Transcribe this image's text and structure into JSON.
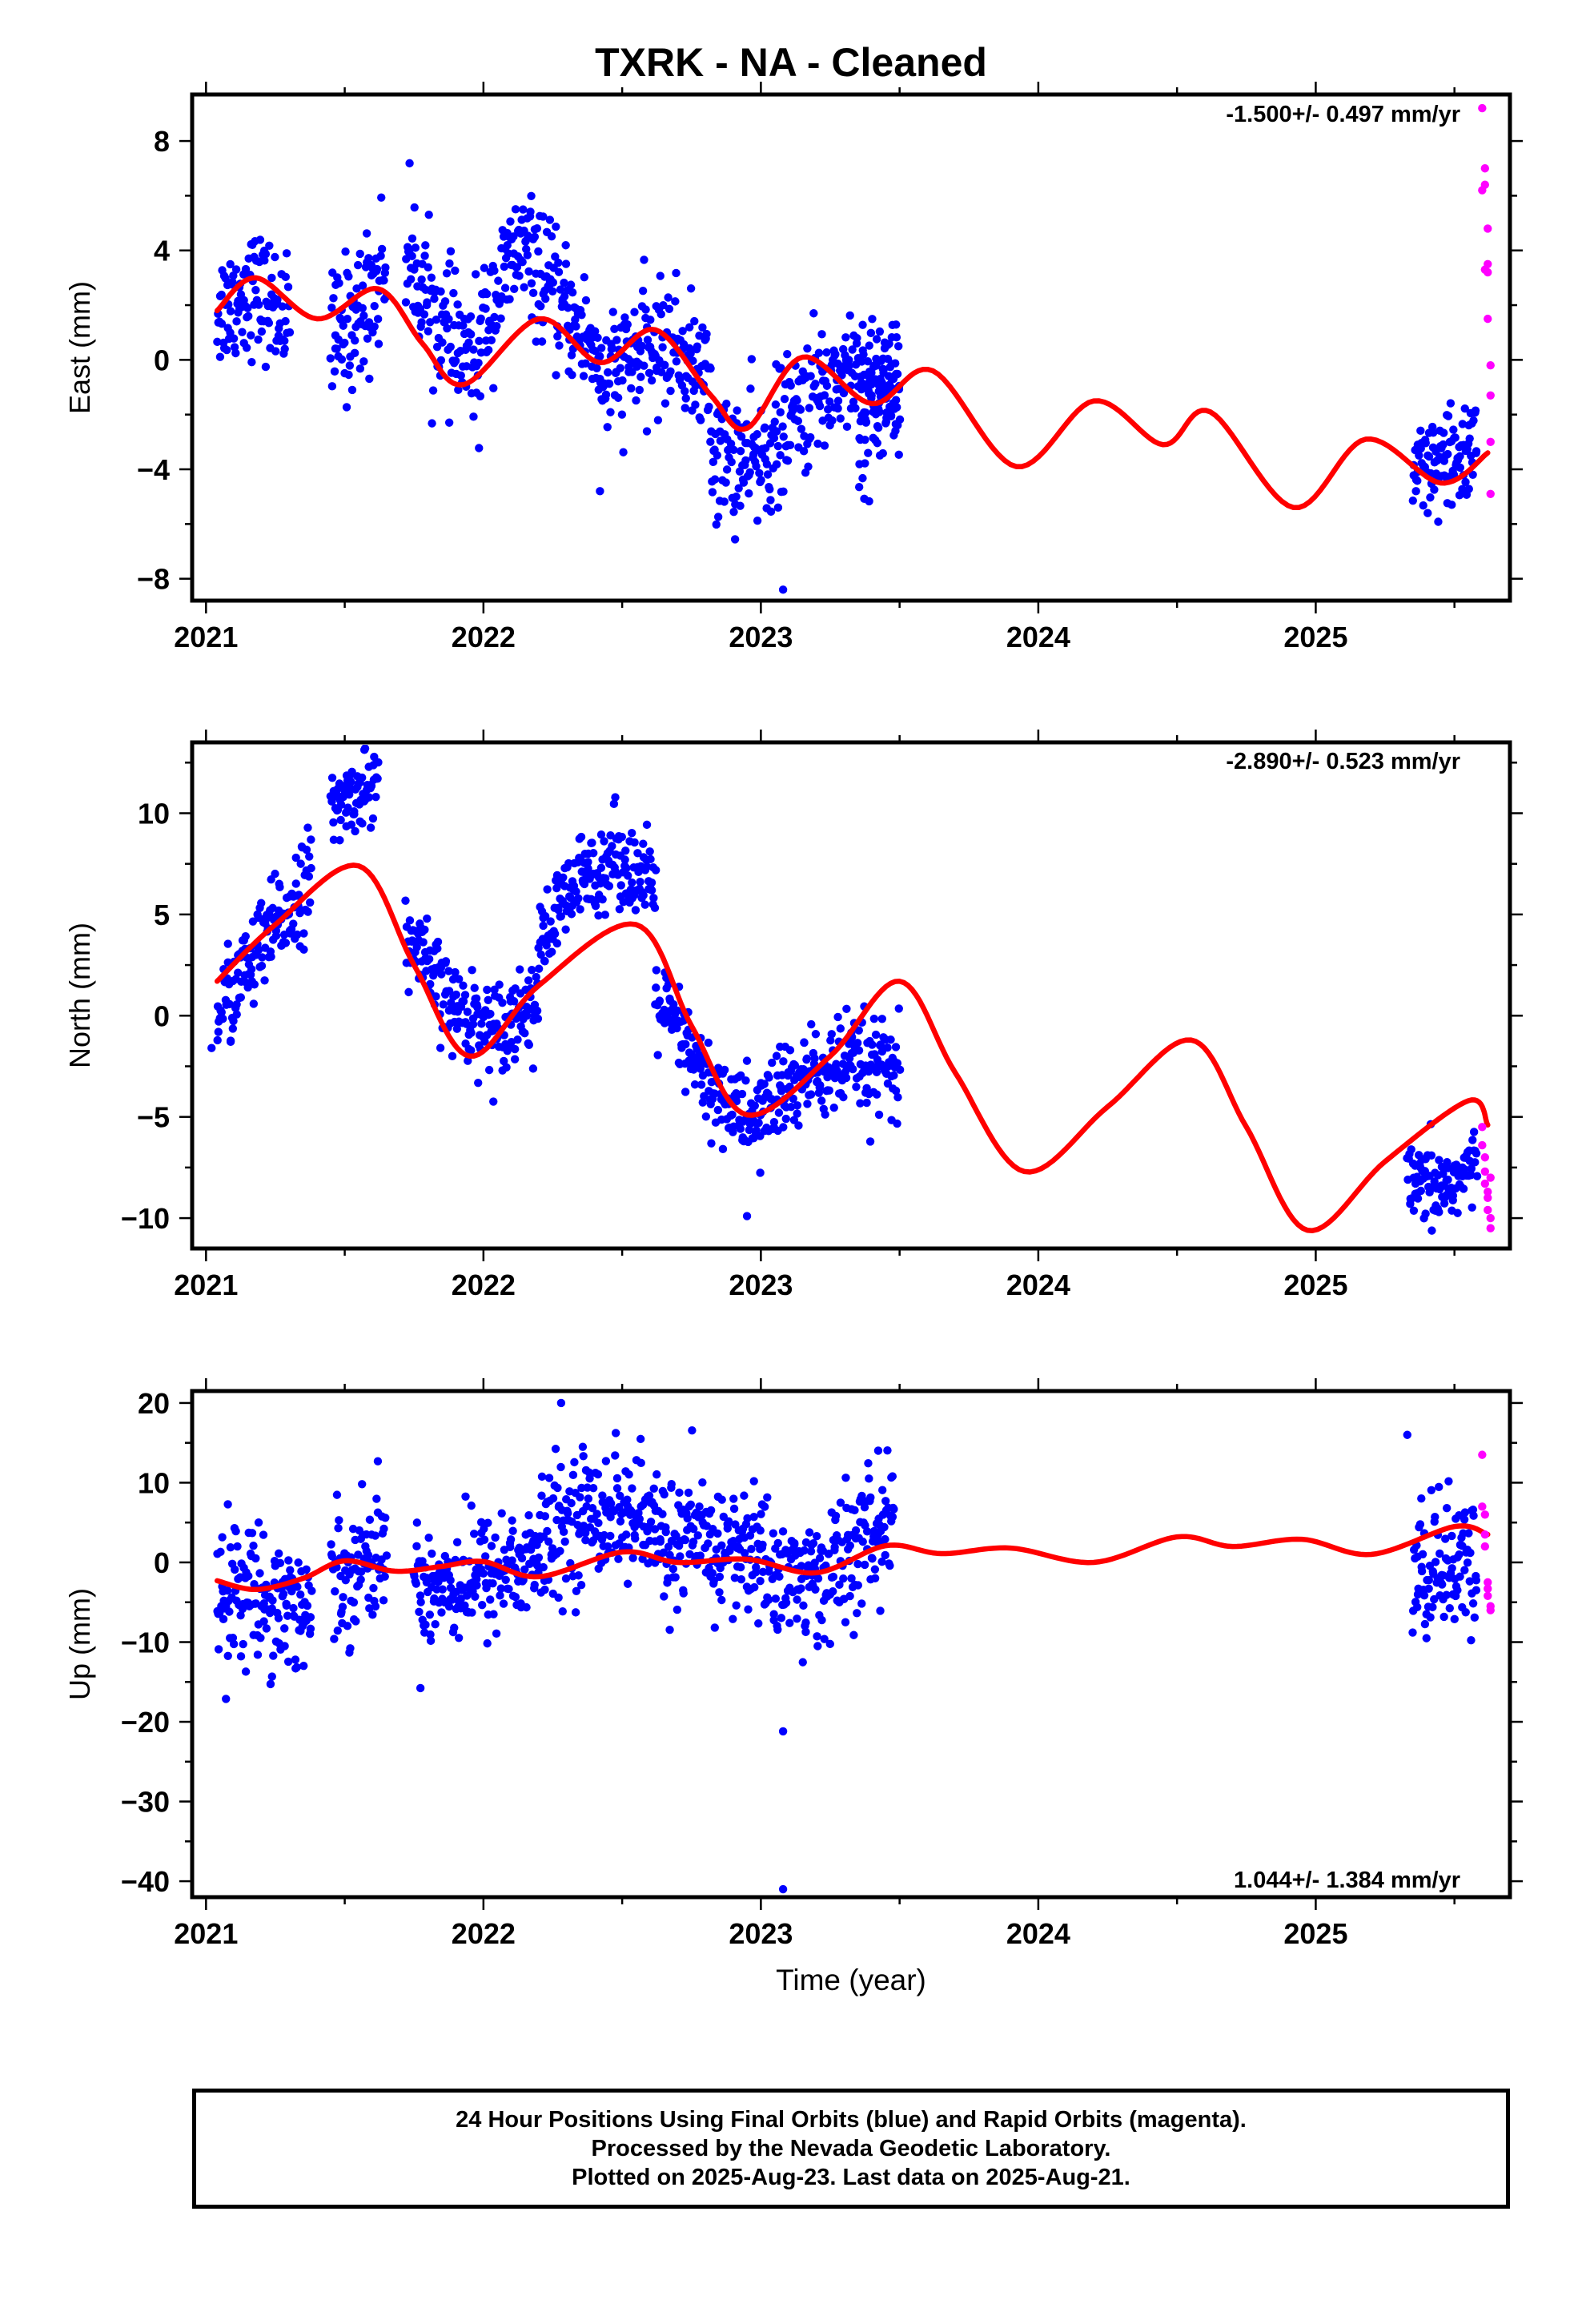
{
  "title": "TXRK  - NA - Cleaned",
  "xlabel": "Time (year)",
  "caption": {
    "line1": "24 Hour Positions Using Final Orbits (blue) and Rapid Orbits (magenta).",
    "line2": "Processed by the Nevada Geodetic Laboratory.",
    "line3": "Plotted on 2025-Aug-23. Last data on 2025-Aug-21."
  },
  "colors": {
    "final": "#0000ff",
    "rapid": "#ff00ff",
    "model": "#ff0000",
    "frame": "#000000"
  },
  "chart_data": [
    {
      "type": "scatter",
      "ylabel": "East (mm)",
      "rate": "-1.500+/- 0.497 mm/yr",
      "xlim": [
        2020.95,
        2025.7
      ],
      "ylim": [
        -8.8,
        9.7
      ],
      "xticks": [
        2021,
        2022,
        2023,
        2024,
        2025
      ],
      "yticks": [
        -8,
        -4,
        0,
        4,
        8
      ],
      "yticklabels": [
        "−8",
        "−4",
        "0",
        "4",
        "8"
      ],
      "model": {
        "x": [
          2021.04,
          2021.18,
          2021.4,
          2021.62,
          2021.78,
          2021.93,
          2022.2,
          2022.42,
          2022.62,
          2022.82,
          2022.95,
          2023.15,
          2023.4,
          2023.62,
          2023.92,
          2024.2,
          2024.45,
          2024.62,
          2024.92,
          2025.18,
          2025.45,
          2025.62
        ],
        "y": [
          1.8,
          3.0,
          1.5,
          2.6,
          0.6,
          -0.9,
          1.5,
          -0.1,
          1.1,
          -1.3,
          -2.5,
          0.1,
          -1.6,
          -0.4,
          -3.9,
          -1.5,
          -3.1,
          -1.9,
          -5.4,
          -2.9,
          -4.5,
          -3.4
        ]
      },
      "final_series": [
        {
          "t0": 2021.04,
          "t1": 2021.3,
          "mu": [
            1.8,
            2.6,
            1.5
          ],
          "sd": 1.1
        },
        {
          "t0": 2021.45,
          "t1": 2021.65,
          "mu": [
            0.6,
            1.6,
            3.5
          ],
          "sd": 1.3
        },
        {
          "t0": 2021.72,
          "t1": 2021.99,
          "mu": [
            4.0,
            1.0,
            -0.4
          ],
          "sd": 1.2
        },
        {
          "t0": 2021.99,
          "t1": 2022.42,
          "mu": [
            1.2,
            4.2,
            2.0,
            0.2
          ],
          "sd": 1.1
        },
        {
          "t0": 2022.42,
          "t1": 2022.82,
          "mu": [
            -1.0,
            0.2,
            0.6,
            -1.0
          ],
          "sd": 1.1
        },
        {
          "t0": 2022.82,
          "t1": 2023.5,
          "mu": [
            -3.5,
            -3.8,
            -1.6,
            -0.2,
            -1.5
          ],
          "sd": 1.2
        },
        {
          "t0": 2023.35,
          "t1": 2023.5,
          "mu": [
            -2.8,
            0.2
          ],
          "sd": 1.2
        },
        {
          "t0": 2025.35,
          "t1": 2025.58,
          "mu": [
            -4.5,
            -4.0,
            -3.0
          ],
          "sd": 1.0
        }
      ],
      "rapid": {
        "x": [
          2025.6,
          2025.6,
          2025.61,
          2025.61,
          2025.61,
          2025.62,
          2025.62,
          2025.62,
          2025.62,
          2025.63,
          2025.63,
          2025.63,
          2025.63
        ],
        "y": [
          9.2,
          6.2,
          7.0,
          6.4,
          3.3,
          3.5,
          3.2,
          1.5,
          4.8,
          -0.2,
          -1.3,
          -3.0,
          -4.9
        ]
      },
      "outliers": {
        "x": [
          2023.08,
          2022.42
        ],
        "y": [
          -8.4,
          -4.8
        ]
      }
    },
    {
      "type": "scatter",
      "ylabel": "North (mm)",
      "rate": "-2.890+/- 0.523 mm/yr",
      "xlim": [
        2020.95,
        2025.7
      ],
      "ylim": [
        -11.5,
        13.5
      ],
      "xticks": [
        2021,
        2022,
        2023,
        2024,
        2025
      ],
      "yticks": [
        -10,
        -5,
        0,
        5,
        10
      ],
      "yticklabels": [
        "−10",
        "−5",
        "0",
        "5",
        "10"
      ],
      "model": {
        "x": [
          2021.04,
          2021.25,
          2021.55,
          2021.75,
          2021.95,
          2022.2,
          2022.55,
          2022.75,
          2022.95,
          2023.25,
          2023.5,
          2023.7,
          2023.95,
          2024.25,
          2024.55,
          2024.75,
          2024.97,
          2025.25,
          2025.55,
          2025.62
        ],
        "y": [
          1.7,
          4.5,
          7.4,
          2.5,
          -2.0,
          1.5,
          4.5,
          -0.5,
          -4.9,
          -2.0,
          1.7,
          -2.8,
          -7.7,
          -4.5,
          -1.2,
          -5.5,
          -10.6,
          -7.2,
          -4.2,
          -5.4
        ]
      },
      "final_series": [
        {
          "t0": 2021.04,
          "t1": 2021.38,
          "mu": [
            0.2,
            3.5,
            7.0
          ],
          "sd": 1.2
        },
        {
          "t0": 2021.45,
          "t1": 2021.62,
          "mu": [
            10.0,
            11.0,
            11.5
          ],
          "sd": 0.9
        },
        {
          "t0": 2021.72,
          "t1": 2022.2,
          "mu": [
            4.0,
            0.5,
            -0.6,
            0.8
          ],
          "sd": 1.1
        },
        {
          "t0": 2022.2,
          "t1": 2022.62,
          "mu": [
            3.5,
            6.5,
            8.0,
            6.0
          ],
          "sd": 1.1
        },
        {
          "t0": 2022.62,
          "t1": 2023.0,
          "mu": [
            1.0,
            -3.5,
            -5.5
          ],
          "sd": 1.1
        },
        {
          "t0": 2023.0,
          "t1": 2023.5,
          "mu": [
            -4.5,
            -3.0,
            -2.5,
            -2.8
          ],
          "sd": 1.2
        },
        {
          "t0": 2025.33,
          "t1": 2025.58,
          "mu": [
            -8.5,
            -8.5,
            -7.5
          ],
          "sd": 1.0
        }
      ],
      "rapid": {
        "x": [
          2025.6,
          2025.6,
          2025.61,
          2025.61,
          2025.61,
          2025.62,
          2025.62,
          2025.62,
          2025.63,
          2025.63,
          2025.63
        ],
        "y": [
          -5.5,
          -6.4,
          -7.0,
          -7.7,
          -8.3,
          -9.0,
          -9.6,
          -8.7,
          -10.5,
          -8.0,
          -10.0
        ]
      },
      "outliers": {
        "x": [
          2022.95,
          2021.02
        ],
        "y": [
          -9.9,
          -1.6
        ]
      }
    },
    {
      "type": "scatter",
      "ylabel": "Up (mm)",
      "rate": "1.044+/- 1.384 mm/yr",
      "xlim": [
        2020.95,
        2025.7
      ],
      "ylim": [
        -42,
        21.5
      ],
      "xticks": [
        2021,
        2022,
        2023,
        2024,
        2025
      ],
      "yticks": [
        -40,
        -30,
        -20,
        -10,
        0,
        10,
        20
      ],
      "yticklabels": [
        "−40",
        "−30",
        "−20",
        "−10",
        "0",
        "10",
        "20"
      ],
      "model": {
        "x": [
          2021.04,
          2021.18,
          2021.35,
          2021.5,
          2021.68,
          2021.85,
          2022.0,
          2022.2,
          2022.5,
          2022.7,
          2022.95,
          2023.2,
          2023.45,
          2023.65,
          2023.9,
          2024.2,
          2024.5,
          2024.7,
          2024.95,
          2025.2,
          2025.5,
          2025.62
        ],
        "y": [
          -2.3,
          -3.4,
          -2.0,
          0.2,
          -1.1,
          -0.5,
          0.1,
          -1.8,
          1.3,
          0.0,
          0.4,
          -1.3,
          2.1,
          1.1,
          1.8,
          0.0,
          3.2,
          2.0,
          2.9,
          1.0,
          4.5,
          3.5
        ]
      },
      "final_series": [
        {
          "t0": 2021.04,
          "t1": 2021.38,
          "mu": [
            -3.0,
            -4.0,
            -6.0
          ],
          "sd": 4.2
        },
        {
          "t0": 2021.45,
          "t1": 2021.65,
          "mu": [
            -2.0,
            0.0,
            2.0
          ],
          "sd": 4.0
        },
        {
          "t0": 2021.75,
          "t1": 2022.2,
          "mu": [
            -3.0,
            -2.5,
            -1.0,
            0.5
          ],
          "sd": 3.8
        },
        {
          "t0": 2022.2,
          "t1": 2022.62,
          "mu": [
            2.0,
            6.0,
            6.5,
            4.0
          ],
          "sd": 4.0
        },
        {
          "t0": 2022.62,
          "t1": 2023.0,
          "mu": [
            3.0,
            2.0,
            1.0
          ],
          "sd": 4.0
        },
        {
          "t0": 2023.0,
          "t1": 2023.48,
          "mu": [
            0.0,
            -3.0,
            0.5,
            6.0
          ],
          "sd": 4.2
        },
        {
          "t0": 2025.35,
          "t1": 2025.58,
          "mu": [
            -2.0,
            0.0,
            -2.0
          ],
          "sd": 4.5
        }
      ],
      "rapid": {
        "x": [
          2025.6,
          2025.6,
          2025.61,
          2025.61,
          2025.61,
          2025.62,
          2025.62,
          2025.62,
          2025.63,
          2025.63
        ],
        "y": [
          13.5,
          7.0,
          6.0,
          3.5,
          2.0,
          -2.5,
          -3.3,
          -4.2,
          -5.5,
          -6.0
        ]
      },
      "outliers": {
        "x": [
          2023.08,
          2023.08,
          2022.28,
          2025.33
        ],
        "y": [
          -41.0,
          -21.2,
          20.0,
          16.0
        ]
      }
    }
  ]
}
